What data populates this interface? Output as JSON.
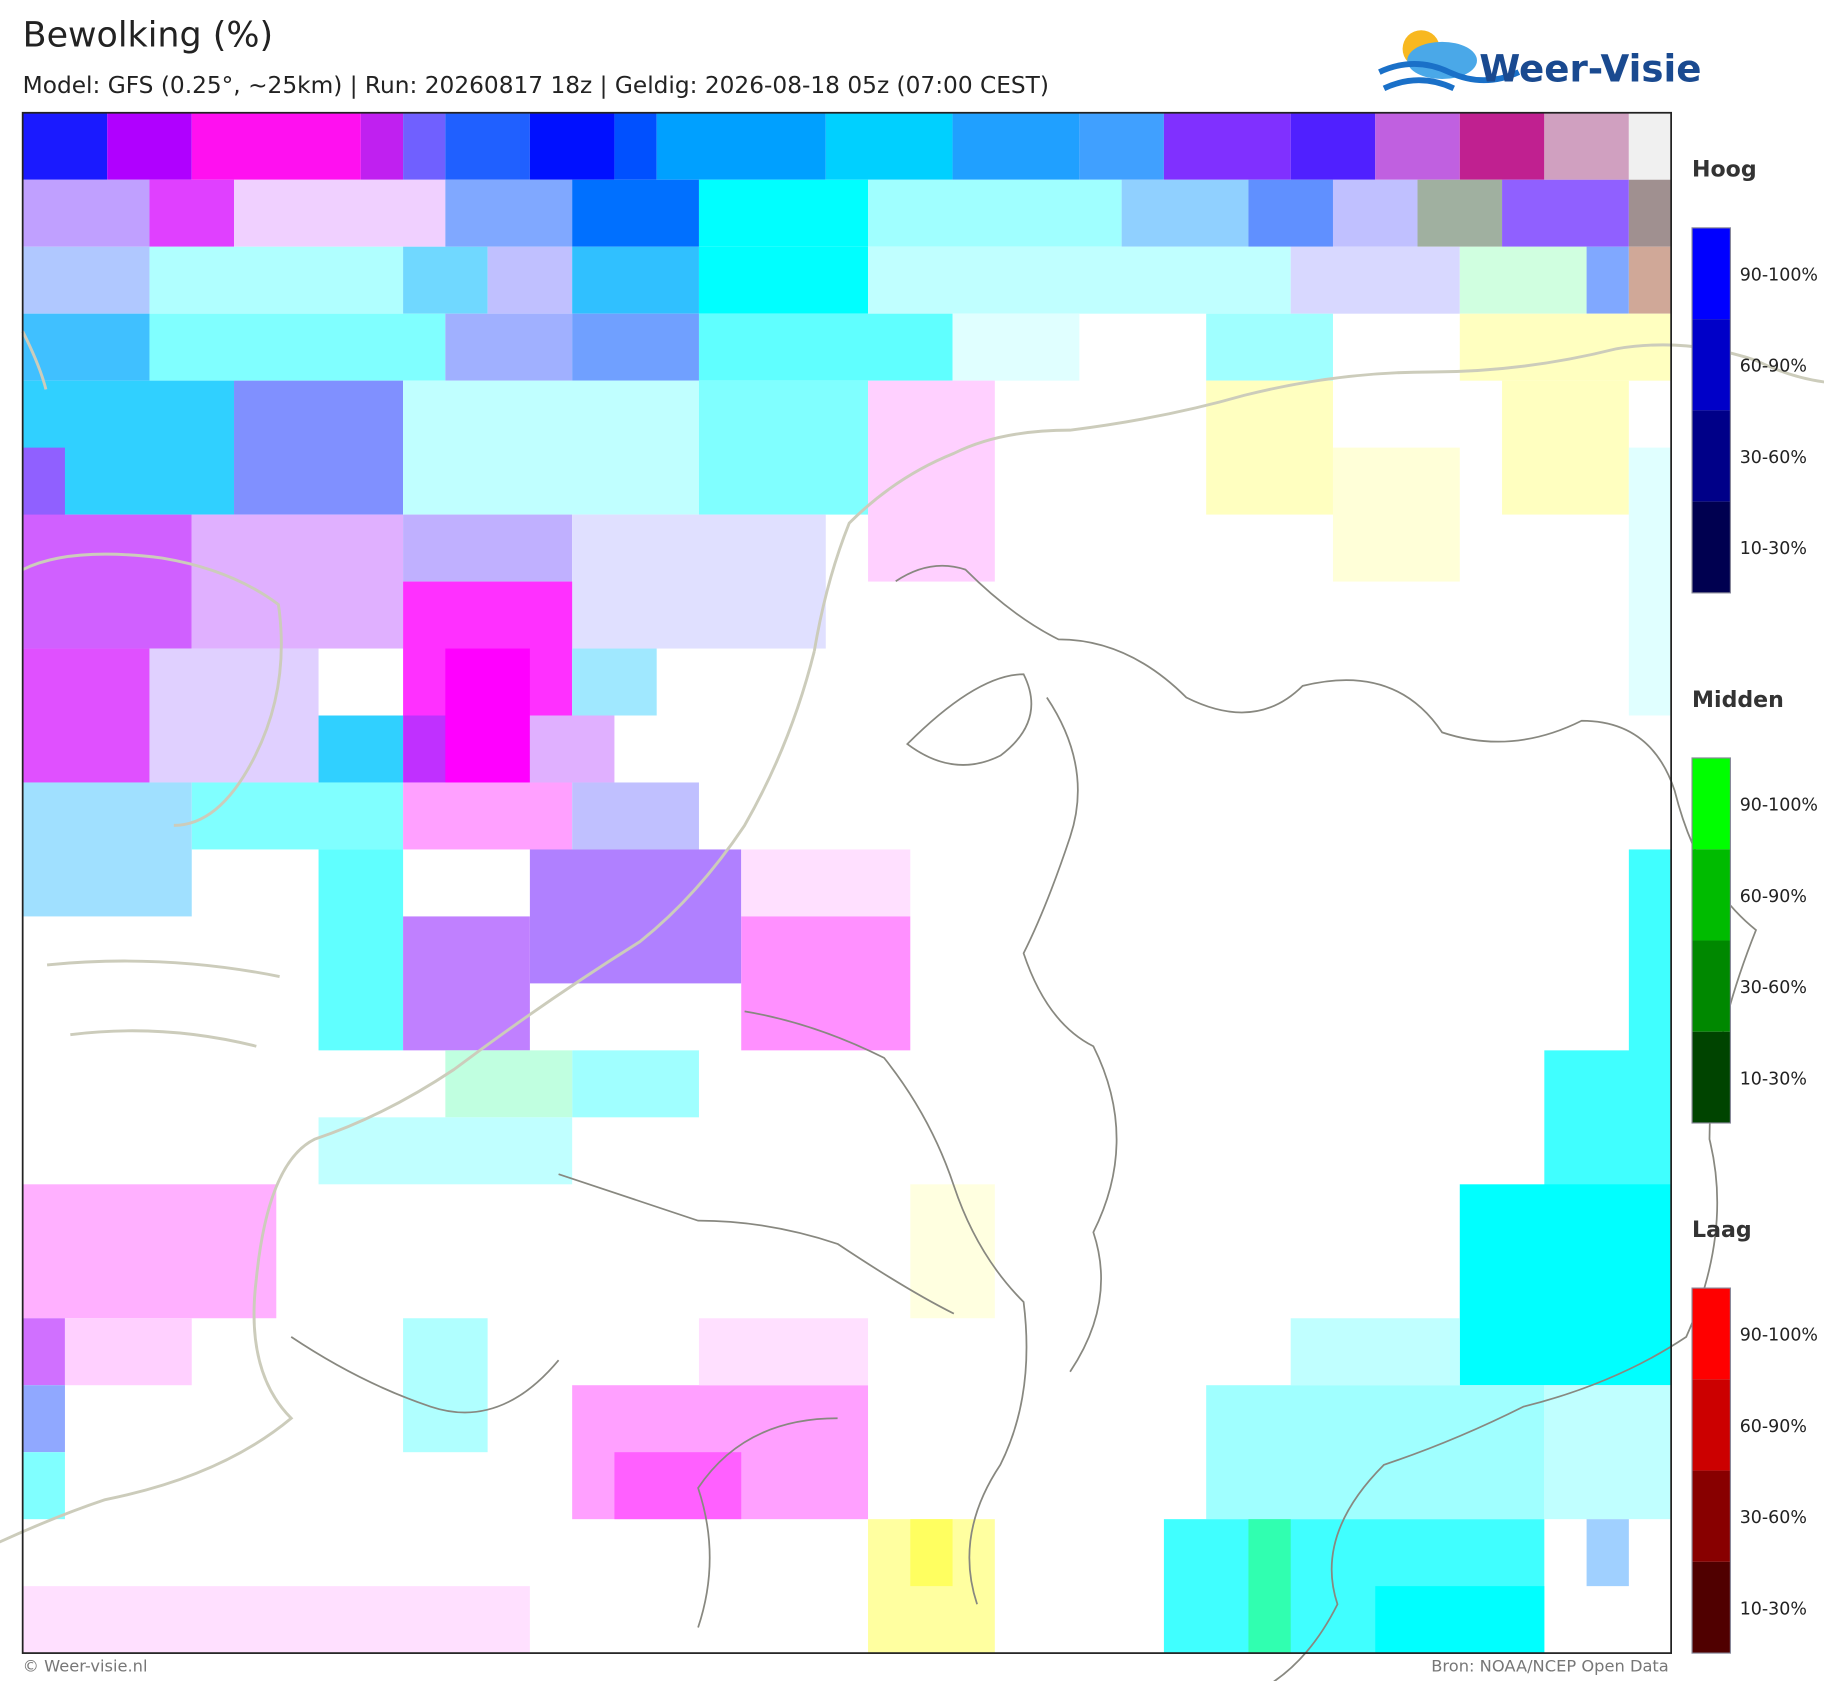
{
  "header": {
    "title": "Bewolking (%)",
    "subtitle": "Model: GFS (0.25°, ~25km)  |  Run: 20260817 18z  |  Geldig: 2026-08-18 05z (07:00 CEST)"
  },
  "logo": {
    "text": "Weer-Visie"
  },
  "legend": {
    "groups": [
      {
        "title": "Hoog",
        "labels": [
          "90-100%",
          "60-90%",
          "30-60%",
          "10-30%"
        ]
      },
      {
        "title": "Midden",
        "labels": [
          "90-100%",
          "60-90%",
          "30-60%",
          "10-30%"
        ]
      },
      {
        "title": "Laag",
        "labels": [
          "90-100%",
          "60-90%",
          "30-60%",
          "10-30%"
        ]
      }
    ]
  },
  "footer": {
    "left": "© Weer-visie.nl",
    "right": "Bron: NOAA/NCEP Open Data"
  }
}
